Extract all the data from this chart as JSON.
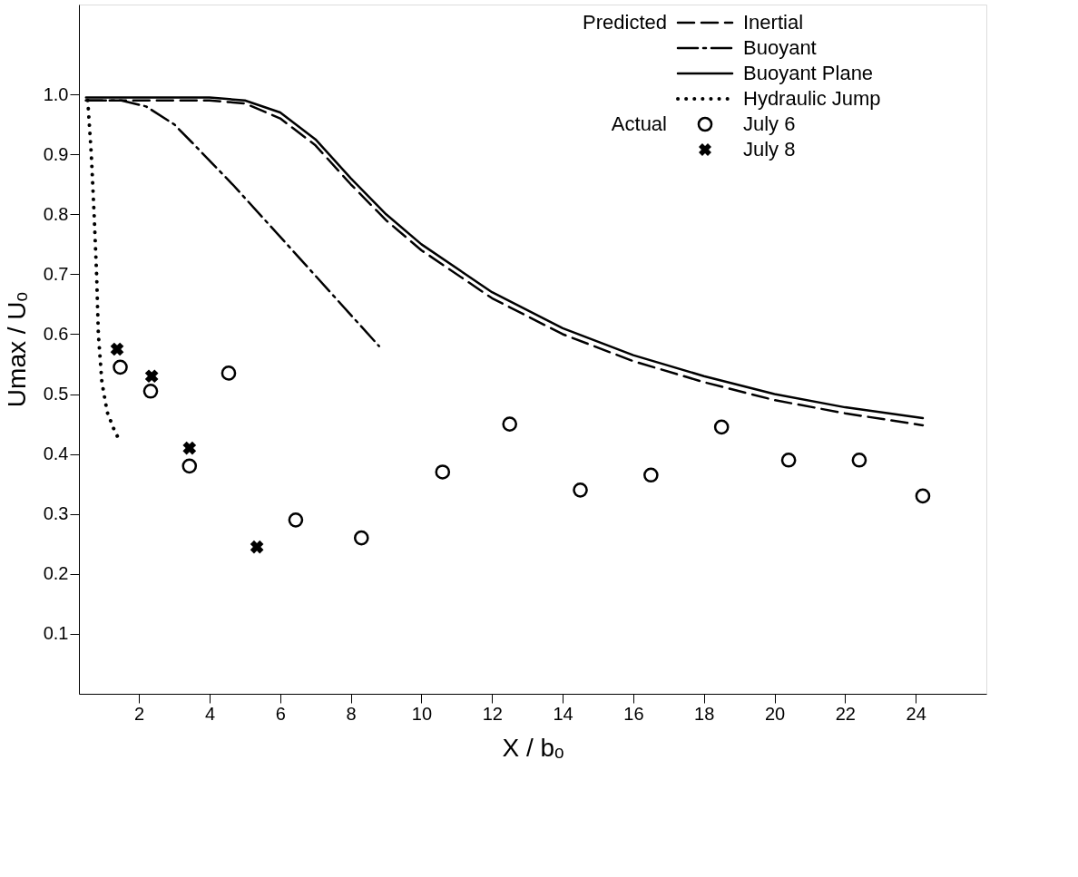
{
  "chart_data": {
    "type": "line",
    "xlabel": "X / bₒ",
    "ylabel": "Umax / Uₒ",
    "xlim": [
      0.3,
      26
    ],
    "xticks": [
      2,
      4,
      6,
      8,
      10,
      12,
      14,
      16,
      18,
      20,
      22,
      24
    ],
    "ylim": [
      0,
      1.15
    ],
    "yticks": [
      0.1,
      0.2,
      0.3,
      0.4,
      0.5,
      0.6,
      0.7,
      0.8,
      0.9,
      {
        "value": 1.0,
        "label": "1.0"
      }
    ],
    "grid": false,
    "legend": "top right",
    "annotations": [
      "Predicted",
      "Actual"
    ],
    "series": [
      {
        "name": "Inertial",
        "color": "#000000",
        "line_style": "dashed",
        "x": [
          0.5,
          4,
          5,
          6,
          7,
          8,
          9,
          10,
          12,
          14,
          16,
          18,
          20,
          22,
          24.2
        ],
        "values": [
          0.99,
          0.99,
          0.985,
          0.96,
          0.915,
          0.85,
          0.79,
          0.74,
          0.66,
          0.6,
          0.555,
          0.52,
          0.49,
          0.468,
          0.448
        ]
      },
      {
        "name": "Buoyant",
        "color": "#000000",
        "line_style": "dashdot",
        "x": [
          0.5,
          1.5,
          2.2,
          3,
          3.5,
          4.65,
          6.5,
          8.8
        ],
        "values": [
          0.99,
          0.99,
          0.98,
          0.95,
          0.92,
          0.85,
          0.73,
          0.58
        ]
      },
      {
        "name": "Buoyant Plane",
        "color": "#000000",
        "line_style": "solid",
        "x": [
          0.5,
          4,
          5,
          6,
          7,
          8,
          9,
          10,
          12,
          14,
          16,
          18,
          20,
          22,
          24.2
        ],
        "values": [
          0.995,
          0.995,
          0.99,
          0.97,
          0.925,
          0.86,
          0.8,
          0.75,
          0.67,
          0.61,
          0.565,
          0.53,
          0.5,
          0.478,
          0.46
        ]
      },
      {
        "name": "Hydraulic Jump",
        "color": "#000000",
        "line_style": "dotted",
        "x": [
          0.55,
          0.65,
          0.73,
          0.8,
          0.85,
          0.95,
          1.1,
          1.3,
          1.47
        ],
        "values": [
          0.99,
          0.9,
          0.8,
          0.7,
          0.6,
          0.52,
          0.47,
          0.44,
          0.42
        ]
      },
      {
        "name": "July 6",
        "type": "scatter",
        "color": "#000000",
        "marker": "circle",
        "x": [
          1.47,
          2.33,
          3.43,
          4.54,
          6.44,
          8.3,
          10.6,
          12.5,
          14.5,
          16.5,
          18.5,
          20.4,
          22.4,
          24.2
        ],
        "values": [
          0.545,
          0.505,
          0.38,
          0.535,
          0.29,
          0.26,
          0.37,
          0.45,
          0.34,
          0.365,
          0.445,
          0.39,
          0.39,
          0.33
        ]
      },
      {
        "name": "July 8",
        "type": "scatter",
        "color": "#000000",
        "marker": "cross",
        "x": [
          1.38,
          2.36,
          3.43,
          5.34
        ],
        "values": [
          0.575,
          0.53,
          0.41,
          0.245
        ]
      }
    ]
  }
}
